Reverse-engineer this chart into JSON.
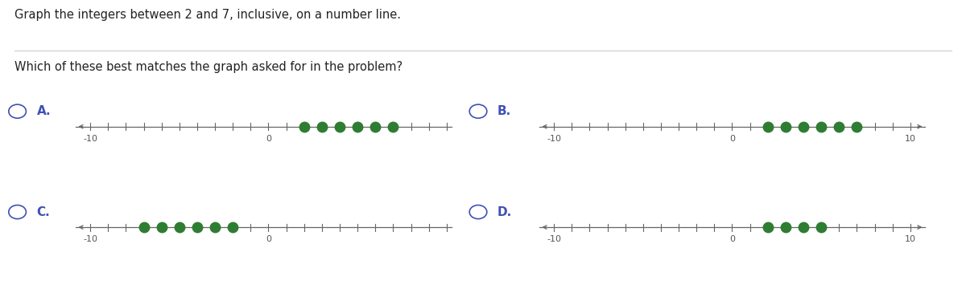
{
  "title_line1": "Graph the integers between 2 and 7, inclusive, on a number line.",
  "title_line2": "Which of these best matches the graph asked for in the problem?",
  "background_color": "#ffffff",
  "options": [
    {
      "label": "A.",
      "dots": [
        2,
        3,
        4,
        5,
        6,
        7
      ],
      "show_right_arrow": false,
      "show_right_10": false
    },
    {
      "label": "B.",
      "dots": [
        2,
        3,
        4,
        5,
        6,
        7
      ],
      "show_right_arrow": true,
      "show_right_10": true
    },
    {
      "label": "C.",
      "dots": [
        -7,
        -6,
        -5,
        -4,
        -3,
        -2
      ],
      "show_right_arrow": false,
      "show_right_10": false
    },
    {
      "label": "D.",
      "dots": [
        2,
        3,
        4,
        5
      ],
      "show_right_arrow": true,
      "show_right_10": true
    }
  ],
  "dot_color": "#2e7d32",
  "line_color": "#666666",
  "label_color": "#3f51b5",
  "radio_color": "#3f51b5",
  "tick_color": "#666666",
  "axis_label_color": "#555555",
  "dot_size": 9,
  "tick_positions": [
    -10,
    -9,
    -8,
    -7,
    -6,
    -5,
    -4,
    -3,
    -2,
    -1,
    0,
    1,
    2,
    3,
    4,
    5,
    6,
    7,
    8,
    9,
    10
  ],
  "fig_width": 12.0,
  "fig_height": 3.8
}
